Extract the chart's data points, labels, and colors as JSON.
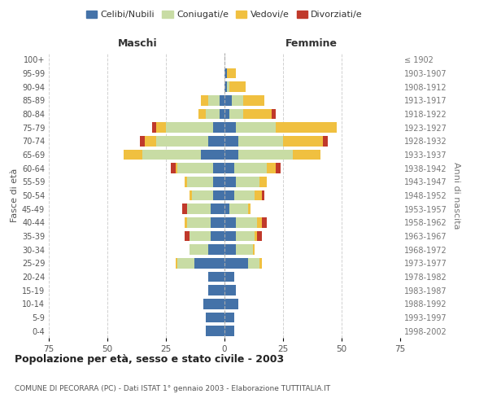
{
  "age_groups": [
    "0-4",
    "5-9",
    "10-14",
    "15-19",
    "20-24",
    "25-29",
    "30-34",
    "35-39",
    "40-44",
    "45-49",
    "50-54",
    "55-59",
    "60-64",
    "65-69",
    "70-74",
    "75-79",
    "80-84",
    "85-89",
    "90-94",
    "95-99",
    "100+"
  ],
  "birth_years": [
    "1998-2002",
    "1993-1997",
    "1988-1992",
    "1983-1987",
    "1978-1982",
    "1973-1977",
    "1968-1972",
    "1963-1967",
    "1958-1962",
    "1953-1957",
    "1948-1952",
    "1943-1947",
    "1938-1942",
    "1933-1937",
    "1928-1932",
    "1923-1927",
    "1918-1922",
    "1913-1917",
    "1908-1912",
    "1903-1907",
    "≤ 1902"
  ],
  "maschi": {
    "celibi": [
      8,
      8,
      9,
      7,
      7,
      13,
      7,
      6,
      6,
      6,
      5,
      5,
      5,
      10,
      7,
      5,
      2,
      2,
      0,
      0,
      0
    ],
    "coniugati": [
      0,
      0,
      0,
      0,
      0,
      7,
      8,
      9,
      10,
      10,
      9,
      11,
      15,
      25,
      22,
      20,
      6,
      5,
      0,
      0,
      0
    ],
    "vedovi": [
      0,
      0,
      0,
      0,
      0,
      1,
      0,
      0,
      1,
      0,
      1,
      1,
      1,
      8,
      5,
      4,
      3,
      3,
      0,
      0,
      0
    ],
    "divorziati": [
      0,
      0,
      0,
      0,
      0,
      0,
      0,
      2,
      0,
      2,
      0,
      0,
      2,
      0,
      2,
      2,
      0,
      0,
      0,
      0,
      0
    ]
  },
  "femmine": {
    "nubili": [
      4,
      4,
      6,
      5,
      4,
      10,
      5,
      5,
      5,
      2,
      4,
      5,
      4,
      6,
      6,
      5,
      2,
      3,
      1,
      1,
      0
    ],
    "coniugate": [
      0,
      0,
      0,
      0,
      0,
      5,
      7,
      8,
      9,
      8,
      9,
      10,
      14,
      23,
      19,
      17,
      6,
      5,
      1,
      0,
      0
    ],
    "vedove": [
      0,
      0,
      0,
      0,
      0,
      1,
      1,
      1,
      2,
      1,
      3,
      3,
      4,
      12,
      17,
      26,
      12,
      9,
      7,
      4,
      0
    ],
    "divorziate": [
      0,
      0,
      0,
      0,
      0,
      0,
      0,
      2,
      2,
      0,
      1,
      0,
      2,
      0,
      2,
      0,
      2,
      0,
      0,
      0,
      0
    ]
  },
  "colors": {
    "celibi_nubili": "#4472a8",
    "coniugati": "#c8dca4",
    "vedovi": "#f0c040",
    "divorziati": "#c0392b"
  },
  "title": "Popolazione per età, sesso e stato civile - 2003",
  "subtitle": "COMUNE DI PECORARA (PC) - Dati ISTAT 1° gennaio 2003 - Elaborazione TUTTITALIA.IT",
  "xlabel_left": "Maschi",
  "xlabel_right": "Femmine",
  "ylabel_left": "Fasce di età",
  "ylabel_right": "Anni di nascita",
  "xlim": 75,
  "background_color": "#ffffff",
  "grid_color": "#cccccc"
}
